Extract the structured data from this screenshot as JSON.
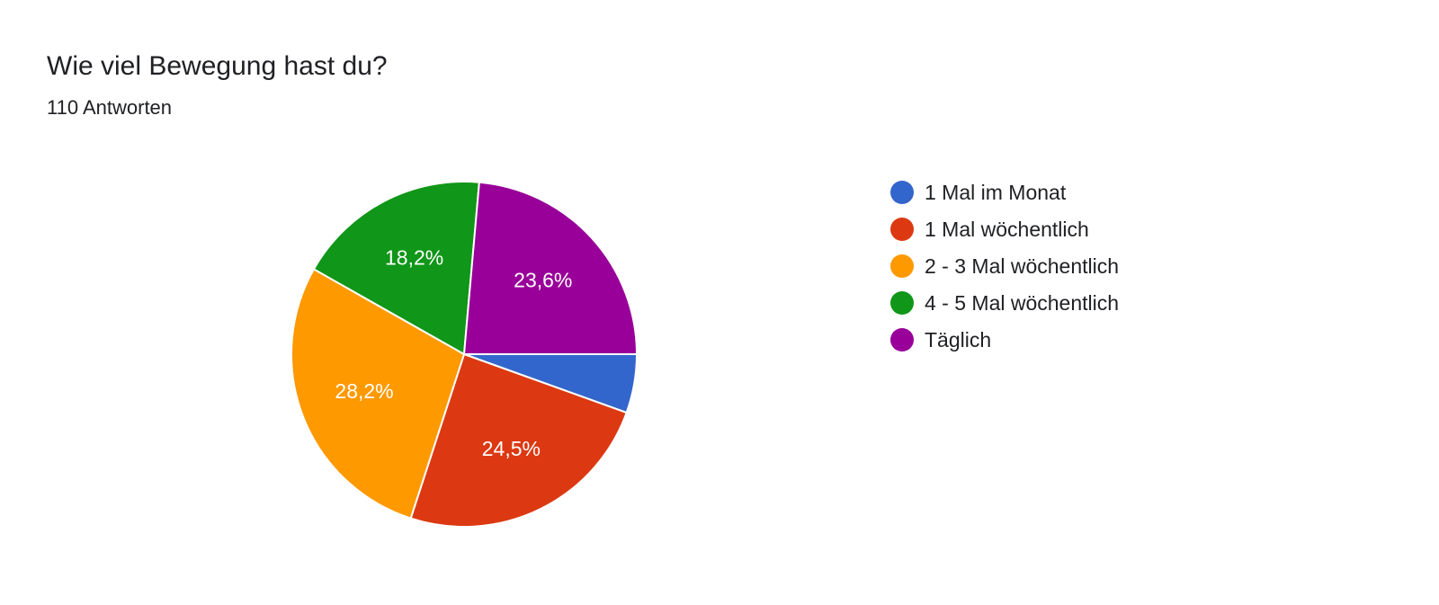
{
  "header": {
    "title": "Wie viel Bewegung hast du?",
    "subtitle": "110 Antworten"
  },
  "chart_data": {
    "type": "pie",
    "title": "Wie viel Bewegung hast du?",
    "total_responses": 110,
    "slices": [
      {
        "label": "1 Mal im Monat",
        "percent": 5.5,
        "display": "",
        "color": "#3366cc"
      },
      {
        "label": "1 Mal wöchentlich",
        "percent": 24.5,
        "display": "24,5%",
        "color": "#dc3912"
      },
      {
        "label": "2 - 3 Mal wöchentlich",
        "percent": 28.2,
        "display": "28,2%",
        "color": "#ff9900"
      },
      {
        "label": "4 - 5 Mal wöchentlich",
        "percent": 18.2,
        "display": "18,2%",
        "color": "#109618"
      },
      {
        "label": "Täglich",
        "percent": 23.6,
        "display": "23,6%",
        "color": "#990099"
      }
    ],
    "legend_position": "right"
  }
}
